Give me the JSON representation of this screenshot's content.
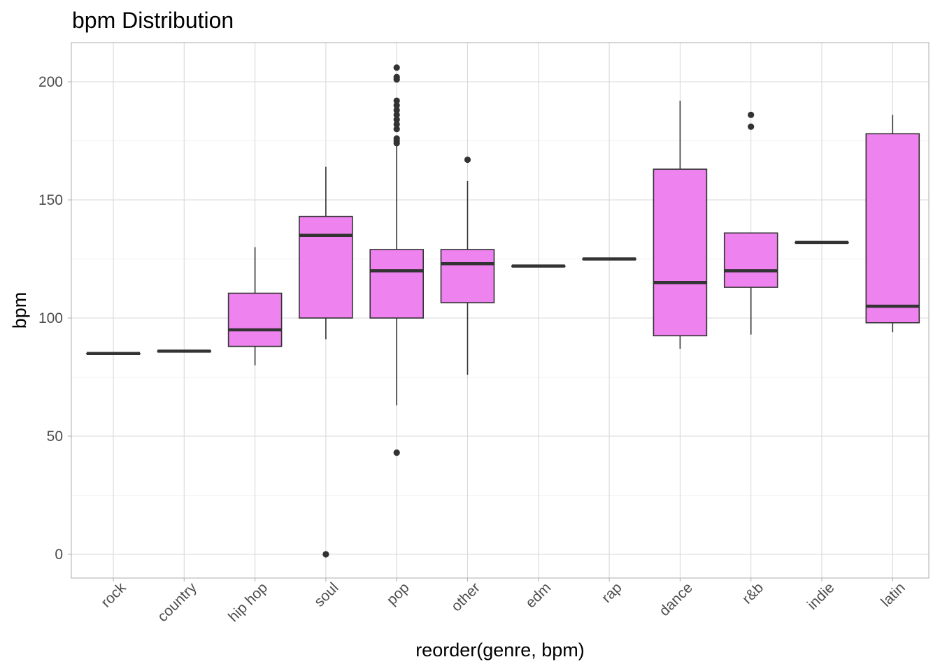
{
  "chart_data": {
    "type": "boxplot",
    "title": "bpm Distribution",
    "xlabel": "reorder(genre, bpm)",
    "ylabel": "bpm",
    "ylim": [
      -10,
      216
    ],
    "y_ticks": [
      0,
      50,
      100,
      150,
      200
    ],
    "y_tick_labels": [
      "0",
      "50",
      "100",
      "150",
      "200"
    ],
    "grid": true,
    "box_fill": "#EE82EE",
    "box_stroke": "#333333",
    "categories": [
      "rock",
      "country",
      "hip hop",
      "soul",
      "pop",
      "other",
      "edm",
      "rap",
      "dance",
      "r&b",
      "indie",
      "latin"
    ],
    "boxes": [
      {
        "category": "rock",
        "min": 85,
        "q1": 85,
        "median": 85,
        "q3": 85,
        "max": 85,
        "outliers": []
      },
      {
        "category": "country",
        "min": 86,
        "q1": 86,
        "median": 86,
        "q3": 86,
        "max": 86,
        "outliers": []
      },
      {
        "category": "hip hop",
        "min": 80,
        "q1": 88,
        "median": 95,
        "q3": 110.5,
        "max": 130,
        "outliers": []
      },
      {
        "category": "soul",
        "min": 91,
        "q1": 100,
        "median": 135,
        "q3": 143,
        "max": 164,
        "outliers": [
          0
        ]
      },
      {
        "category": "pop",
        "min": 63,
        "q1": 100,
        "median": 120,
        "q3": 129,
        "max": 173,
        "outliers": [
          43,
          174,
          175,
          176,
          180,
          182,
          184,
          186,
          188,
          190,
          192,
          201,
          202,
          206
        ]
      },
      {
        "category": "other",
        "min": 76,
        "q1": 106.5,
        "median": 123,
        "q3": 129,
        "max": 158,
        "outliers": [
          167
        ]
      },
      {
        "category": "edm",
        "min": 122,
        "q1": 122,
        "median": 122,
        "q3": 122,
        "max": 122,
        "outliers": []
      },
      {
        "category": "rap",
        "min": 125,
        "q1": 125,
        "median": 125,
        "q3": 125,
        "max": 125,
        "outliers": []
      },
      {
        "category": "dance",
        "min": 87,
        "q1": 92.5,
        "median": 115,
        "q3": 163,
        "max": 192,
        "outliers": []
      },
      {
        "category": "r&b",
        "min": 93,
        "q1": 113,
        "median": 120,
        "q3": 136,
        "max": 136,
        "outliers": [
          181,
          186
        ]
      },
      {
        "category": "indie",
        "min": 132,
        "q1": 132,
        "median": 132,
        "q3": 132,
        "max": 132,
        "outliers": []
      },
      {
        "category": "latin",
        "min": 94,
        "q1": 98,
        "median": 105,
        "q3": 178,
        "max": 186,
        "outliers": []
      }
    ]
  }
}
